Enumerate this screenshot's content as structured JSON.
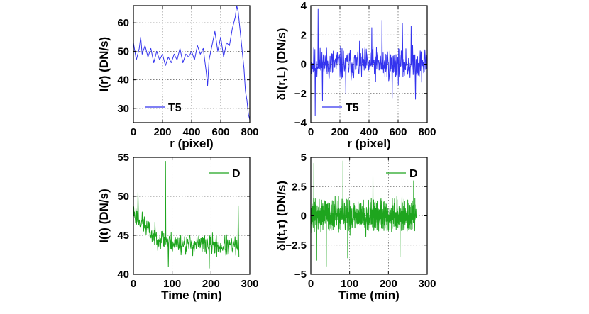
{
  "chart_data": [
    {
      "id": "p1",
      "type": "line",
      "xlabel": "r (pixel)",
      "ylabel": "I(r) (DN/s)",
      "xlim": [
        0,
        800
      ],
      "ylim": [
        25,
        66
      ],
      "xticks": [
        0,
        200,
        400,
        600,
        800
      ],
      "yticks": [
        30,
        40,
        50,
        60
      ],
      "xtick_labels": [
        "0",
        "200",
        "400",
        "600",
        "800"
      ],
      "ytick_labels": [
        "30",
        "40",
        "50",
        "60"
      ],
      "grid": true,
      "legend": "bottom-left",
      "series": [
        {
          "name": "T5",
          "color": "#3333ee",
          "x": [
            0,
            20,
            40,
            50,
            60,
            80,
            100,
            120,
            140,
            160,
            180,
            200,
            220,
            240,
            260,
            280,
            300,
            320,
            340,
            360,
            380,
            400,
            420,
            440,
            460,
            480,
            500,
            510,
            520,
            540,
            560,
            580,
            600,
            620,
            640,
            660,
            680,
            700,
            710,
            720,
            740,
            760,
            770,
            780,
            790,
            800
          ],
          "values": [
            53,
            47,
            51,
            55,
            49,
            52,
            48,
            51,
            46,
            50,
            47,
            49,
            45,
            48,
            46,
            49,
            47,
            51,
            46,
            49,
            48,
            50,
            47,
            52,
            49,
            51,
            43,
            38,
            47,
            52,
            57,
            50,
            55,
            48,
            53,
            52,
            58,
            62,
            66,
            64,
            54,
            44,
            36,
            33,
            28,
            26
          ]
        }
      ]
    },
    {
      "id": "p2",
      "type": "line",
      "xlabel": "r (pixel)",
      "ylabel": "δI(r,L) (DN/s)",
      "xlim": [
        0,
        800
      ],
      "ylim": [
        -4,
        4
      ],
      "xticks": [
        0,
        200,
        400,
        600,
        800
      ],
      "yticks": [
        -4,
        -2,
        0,
        2,
        4
      ],
      "xtick_labels": [
        "0",
        "200",
        "400",
        "600",
        "800"
      ],
      "ytick_labels": [
        "−4",
        "−2",
        "0",
        "2",
        "4"
      ],
      "grid": true,
      "legend": "bottom-left",
      "series": [
        {
          "name": "T5",
          "color": "#3333ee",
          "x_range": [
            0,
            800
          ],
          "n_points": 400,
          "noise": {
            "seed": 11,
            "mean": 0,
            "spread": 1.1,
            "spikes": [
              {
                "x": 30,
                "value": -3.5
              },
              {
                "x": 50,
                "value": 3.8
              },
              {
                "x": 80,
                "value": -2.5
              },
              {
                "x": 240,
                "value": -2.0
              },
              {
                "x": 420,
                "value": 2.5
              },
              {
                "x": 490,
                "value": 3.0
              },
              {
                "x": 560,
                "value": -2.3
              },
              {
                "x": 630,
                "value": 2.8
              },
              {
                "x": 690,
                "value": 2.6
              },
              {
                "x": 720,
                "value": -2.4
              }
            ]
          }
        }
      ]
    },
    {
      "id": "p3",
      "type": "line",
      "xlabel": "Time (min)",
      "ylabel": "I(t) (DN/s)",
      "xlim": [
        0,
        300
      ],
      "ylim": [
        40,
        55
      ],
      "xticks": [
        0,
        100,
        200,
        300
      ],
      "yticks": [
        40,
        45,
        50,
        55
      ],
      "xtick_labels": [
        "0",
        "100",
        "200",
        "300"
      ],
      "ytick_labels": [
        "40",
        "45",
        "50",
        "55"
      ],
      "grid": true,
      "legend": "top-right",
      "series": [
        {
          "name": "D",
          "color": "#1ea51e",
          "x_range": [
            0,
            272
          ],
          "n_points": 300,
          "noise": {
            "seed": 23,
            "spread": 1.3,
            "trend": [
              {
                "x": 0,
                "value": 48
              },
              {
                "x": 50,
                "value": 45
              },
              {
                "x": 100,
                "value": 44
              },
              {
                "x": 272,
                "value": 43.5
              }
            ],
            "spikes": [
              {
                "x": 83,
                "value": 54.5
              },
              {
                "x": 90,
                "value": 41.0
              },
              {
                "x": 12,
                "value": 50.5
              },
              {
                "x": 196,
                "value": 40.8
              },
              {
                "x": 270,
                "value": 48.8
              }
            ]
          }
        }
      ]
    },
    {
      "id": "p4",
      "type": "line",
      "xlabel": "Time (min)",
      "ylabel": "δI(t,τ) (DN/s)",
      "xlim": [
        0,
        300
      ],
      "ylim": [
        -5,
        5
      ],
      "xticks": [
        0,
        100,
        200,
        300
      ],
      "yticks": [
        -5,
        -2.5,
        0,
        2.5,
        5
      ],
      "xtick_labels": [
        "0",
        "100",
        "200",
        "300"
      ],
      "ytick_labels": [
        "−5",
        "−2.5",
        "0",
        "2.5",
        "5"
      ],
      "grid": true,
      "legend": "top-right",
      "series": [
        {
          "name": "D",
          "color": "#1ea51e",
          "x_range": [
            0,
            272
          ],
          "n_points": 900,
          "noise": {
            "seed": 37,
            "mean": 0,
            "spread": 1.3,
            "spikes": [
              {
                "x": 8,
                "value": 4.5
              },
              {
                "x": 15,
                "value": -3.8
              },
              {
                "x": 40,
                "value": -4.3
              },
              {
                "x": 83,
                "value": 4.7
              },
              {
                "x": 95,
                "value": -3.6
              },
              {
                "x": 160,
                "value": 3.4
              },
              {
                "x": 230,
                "value": -3.5
              },
              {
                "x": 265,
                "value": 3.0
              }
            ]
          }
        }
      ]
    }
  ]
}
